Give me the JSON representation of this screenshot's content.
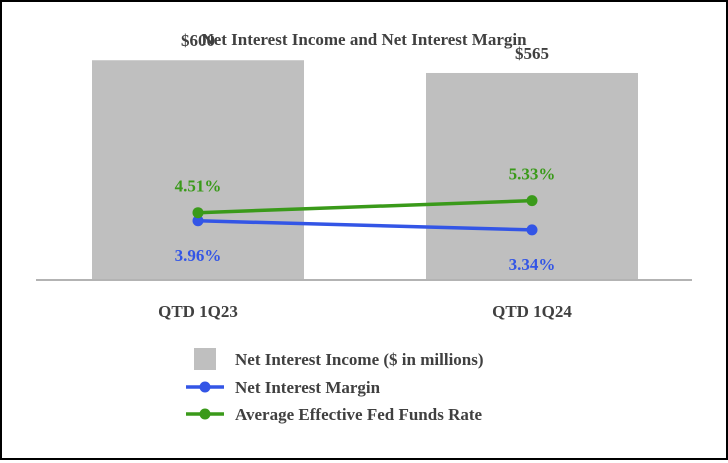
{
  "chart_data": {
    "type": "bar",
    "title": "Net Interest Income and Net Interest Margin",
    "categories": [
      "QTD 1Q23",
      "QTD 1Q24"
    ],
    "ylim": [
      0,
      650
    ],
    "y2lim": [
      0,
      16.12
    ],
    "bar_series": {
      "name": "Net Interest Income ($ in millions)",
      "values": [
        600,
        565
      ],
      "labels": [
        "$600",
        "$565"
      ],
      "color": "#bfbfbf",
      "label_color": "#404040"
    },
    "line_series": [
      {
        "name": "Net Interest Margin",
        "values": [
          3.96,
          3.34
        ],
        "labels": [
          "3.96%",
          "3.34%"
        ],
        "color": "#3355e6"
      },
      {
        "name": "Average Effective Fed Funds Rate",
        "values": [
          4.51,
          5.33
        ],
        "labels": [
          "4.51%",
          "5.33%"
        ],
        "color": "#3a9a1a"
      }
    ],
    "legend": [
      {
        "label": "Net Interest Income ($ in millions)",
        "kind": "box",
        "color": "#bfbfbf"
      },
      {
        "label": "Net Interest Margin",
        "kind": "line",
        "color": "#3355e6"
      },
      {
        "label": "Average Effective Fed Funds Rate",
        "kind": "line",
        "color": "#3a9a1a"
      }
    ],
    "legend_position": "bottom-center",
    "grid": false
  }
}
